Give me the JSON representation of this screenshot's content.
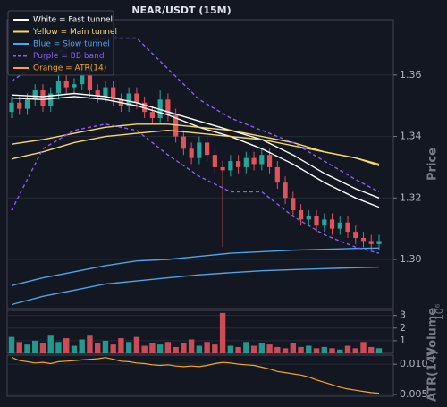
{
  "chart_data": [
    {
      "type": "candlestick",
      "title": "NEAR/USDT (15M)",
      "ylabel": "Price",
      "up_color": "#26a69a",
      "down_color": "#e0525c",
      "categories": [
        null,
        null,
        null,
        null,
        null,
        null,
        null,
        null,
        null,
        null,
        null,
        null,
        null,
        null,
        null,
        null,
        null,
        null,
        null,
        null,
        null,
        null,
        null,
        null,
        null,
        null,
        null,
        null,
        null,
        null,
        null,
        null,
        null,
        null,
        null,
        null,
        null,
        null,
        null,
        null,
        null,
        null,
        null,
        null,
        null,
        null,
        null,
        null
      ],
      "open": [
        1.348,
        1.351,
        1.349,
        1.352,
        1.355,
        1.35,
        1.354,
        1.358,
        1.356,
        1.357,
        1.36,
        1.355,
        1.353,
        1.356,
        1.352,
        1.35,
        1.354,
        1.351,
        1.348,
        1.346,
        1.352,
        1.347,
        1.34,
        1.336,
        1.333,
        1.338,
        1.334,
        1.33,
        1.329,
        1.332,
        1.33,
        1.333,
        1.331,
        1.334,
        1.33,
        1.325,
        1.32,
        1.316,
        1.313,
        1.314,
        1.311,
        1.313,
        1.31,
        1.312,
        1.309,
        1.307,
        1.306,
        1.305
      ],
      "high": [
        1.353,
        1.353,
        1.354,
        1.357,
        1.357,
        1.356,
        1.361,
        1.36,
        1.359,
        1.362,
        1.363,
        1.357,
        1.358,
        1.358,
        1.354,
        1.356,
        1.356,
        1.353,
        1.35,
        1.355,
        1.354,
        1.349,
        1.342,
        1.338,
        1.34,
        1.34,
        1.336,
        1.332,
        1.334,
        1.334,
        1.335,
        1.335,
        1.336,
        1.336,
        1.332,
        1.327,
        1.322,
        1.318,
        1.316,
        1.316,
        1.315,
        1.315,
        1.314,
        1.314,
        1.311,
        1.309,
        1.308,
        1.308
      ],
      "low": [
        1.346,
        1.347,
        1.347,
        1.35,
        1.348,
        1.348,
        1.352,
        1.354,
        1.354,
        1.355,
        1.353,
        1.351,
        1.351,
        1.35,
        1.348,
        1.348,
        1.349,
        1.346,
        1.344,
        1.344,
        1.345,
        1.338,
        1.334,
        1.331,
        1.331,
        1.332,
        1.328,
        1.304,
        1.327,
        1.328,
        1.328,
        1.329,
        1.329,
        1.328,
        1.323,
        1.318,
        1.314,
        1.311,
        1.311,
        1.309,
        1.309,
        1.308,
        1.308,
        1.307,
        1.305,
        1.304,
        1.303,
        1.303
      ],
      "close": [
        1.351,
        1.349,
        1.352,
        1.355,
        1.35,
        1.354,
        1.358,
        1.356,
        1.357,
        1.36,
        1.355,
        1.353,
        1.356,
        1.352,
        1.35,
        1.354,
        1.351,
        1.348,
        1.346,
        1.352,
        1.347,
        1.34,
        1.336,
        1.333,
        1.338,
        1.334,
        1.33,
        1.329,
        1.332,
        1.33,
        1.333,
        1.331,
        1.334,
        1.33,
        1.325,
        1.32,
        1.316,
        1.313,
        1.314,
        1.311,
        1.313,
        1.31,
        1.312,
        1.309,
        1.307,
        1.306,
        1.305,
        1.306
      ],
      "overlays": [
        {
          "color": "#ffffff",
          "dash": false,
          "lines": [
            {
              "x": [
                0,
                4,
                8,
                12,
                16,
                20,
                24,
                28,
                32,
                36,
                40,
                44,
                47
              ],
              "values": [
                1.3535,
                1.353,
                1.354,
                1.353,
                1.351,
                1.348,
                1.345,
                1.342,
                1.339,
                1.334,
                1.328,
                1.323,
                1.32
              ]
            },
            {
              "x": [
                0,
                4,
                8,
                12,
                16,
                20,
                24,
                28,
                32,
                36,
                40,
                44,
                47
              ],
              "values": [
                1.3525,
                1.352,
                1.353,
                1.352,
                1.35,
                1.347,
                1.343,
                1.34,
                1.336,
                1.331,
                1.325,
                1.32,
                1.317
              ]
            }
          ]
        },
        {
          "color": "#f5d76e",
          "dash": false,
          "lines": [
            {
              "x": [
                0,
                4,
                8,
                12,
                16,
                20,
                24,
                28,
                32,
                36,
                40,
                44,
                47
              ],
              "values": [
                1.3375,
                1.339,
                1.341,
                1.343,
                1.344,
                1.344,
                1.343,
                1.342,
                1.34,
                1.338,
                1.335,
                1.333,
                1.331
              ]
            },
            {
              "x": [
                0,
                4,
                8,
                12,
                16,
                20,
                24,
                28,
                32,
                36,
                40,
                44,
                47
              ],
              "values": [
                1.3327,
                1.335,
                1.338,
                1.34,
                1.341,
                1.342,
                1.341,
                1.34,
                1.339,
                1.337,
                1.335,
                1.333,
                1.3305
              ]
            }
          ]
        },
        {
          "color": "#4ea4e8",
          "dash": false,
          "lines": [
            {
              "x": [
                0,
                4,
                8,
                12,
                16,
                20,
                24,
                28,
                32,
                36,
                40,
                44,
                47
              ],
              "values": [
                1.2915,
                1.294,
                1.296,
                1.298,
                1.2995,
                1.3,
                1.301,
                1.302,
                1.3025,
                1.303,
                1.3033,
                1.3036,
                1.3037
              ]
            },
            {
              "x": [
                0,
                4,
                8,
                12,
                16,
                20,
                24,
                28,
                32,
                36,
                40,
                44,
                47
              ],
              "values": [
                1.2853,
                1.288,
                1.29,
                1.292,
                1.293,
                1.294,
                1.295,
                1.2957,
                1.2963,
                1.2967,
                1.297,
                1.2973,
                1.2975
              ]
            }
          ]
        },
        {
          "color": "#8a5cf5",
          "dash": true,
          "lines": [
            {
              "x": [
                0,
                4,
                8,
                12,
                16,
                20,
                24,
                28,
                32,
                36,
                40,
                44,
                47
              ],
              "values": [
                1.358,
                1.365,
                1.37,
                1.372,
                1.372,
                1.362,
                1.352,
                1.346,
                1.342,
                1.338,
                1.332,
                1.326,
                1.322
              ]
            },
            {
              "x": [
                0,
                4,
                8,
                12,
                16,
                20,
                24,
                28,
                32,
                36,
                40,
                44,
                47
              ],
              "values": [
                1.316,
                1.336,
                1.342,
                1.344,
                1.342,
                1.334,
                1.327,
                1.322,
                1.322,
                1.314,
                1.308,
                1.304,
                1.302
              ]
            }
          ]
        }
      ],
      "legend": [
        {
          "label": "White = Fast tunnel",
          "color": "#ffffff",
          "dash": false
        },
        {
          "label": "Yellow = Main tunnel",
          "color": "#f5d76e",
          "dash": false
        },
        {
          "label": "Blue = Slow tunnel",
          "color": "#4ea4e8",
          "dash": false
        },
        {
          "label": "Purple = BB band",
          "color": "#8a5cf5",
          "dash": true
        },
        {
          "label": "Orange = ATR(14)",
          "color": "#f5a623",
          "dash": false
        }
      ],
      "ylim": [
        1.284,
        1.378
      ],
      "yticks": [
        {
          "value": 1.3,
          "label": "1.30"
        },
        1.32,
        1.34,
        1.36
      ],
      "grid": true
    },
    {
      "type": "bar",
      "ylabel": "Volume",
      "scale_label": "10⁶",
      "values": [
        1.3,
        0.9,
        0.7,
        1.0,
        0.8,
        1.4,
        0.9,
        1.2,
        0.6,
        1.1,
        1.4,
        0.8,
        1.0,
        0.7,
        1.2,
        0.9,
        1.3,
        0.6,
        0.8,
        0.7,
        0.9,
        0.5,
        0.8,
        1.1,
        0.6,
        0.9,
        0.7,
        3.2,
        0.6,
        0.5,
        0.9,
        0.6,
        0.8,
        0.7,
        0.5,
        0.4,
        0.8,
        0.5,
        0.6,
        0.4,
        0.5,
        0.4,
        0.3,
        0.6,
        0.4,
        0.9,
        0.5,
        0.4
      ],
      "ylim": [
        0,
        3.4
      ],
      "yticks": [
        1,
        2,
        3
      ],
      "grid": true
    },
    {
      "type": "line",
      "ylabel": "ATR(14)",
      "color": "#f5a623",
      "values": [
        0.0111,
        0.0106,
        0.0104,
        0.0102,
        0.0103,
        0.0101,
        0.0104,
        0.0105,
        0.0106,
        0.0107,
        0.0108,
        0.0109,
        0.0111,
        0.0108,
        0.0105,
        0.0104,
        0.0102,
        0.0101,
        0.0099,
        0.0098,
        0.0099,
        0.0097,
        0.0096,
        0.0097,
        0.0096,
        0.0098,
        0.0101,
        0.0103,
        0.0102,
        0.01,
        0.0099,
        0.0098,
        0.0095,
        0.0092,
        0.0088,
        0.0086,
        0.0084,
        0.0082,
        0.0079,
        0.0074,
        0.007,
        0.0066,
        0.0062,
        0.0059,
        0.0057,
        0.0055,
        0.0053,
        0.0052
      ],
      "ylim": [
        0.0047,
        0.0115
      ],
      "yticks": [
        0.005,
        {
          "value": 0.01,
          "label": "0.010"
        }
      ],
      "grid": true
    }
  ]
}
